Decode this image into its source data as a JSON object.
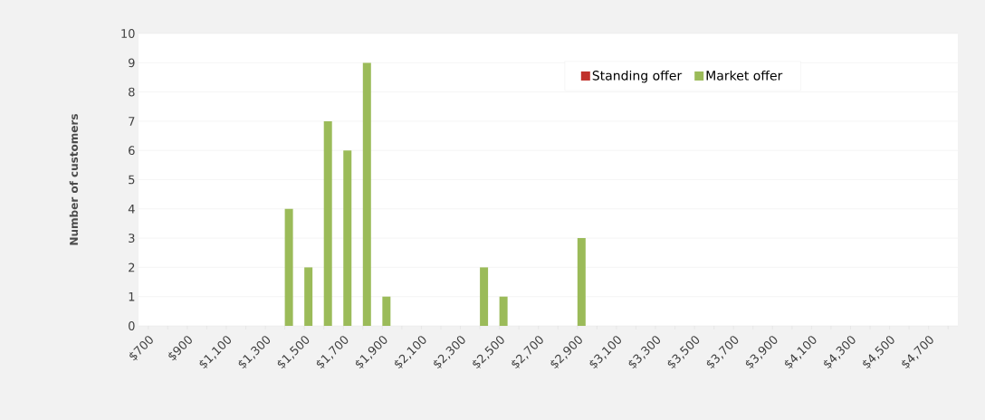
{
  "chart_data": {
    "type": "bar",
    "ylabel": "Number of customers",
    "categories": [
      "$700",
      null,
      "$900",
      null,
      "$1,100",
      null,
      "$1,300",
      null,
      "$1,500",
      null,
      "$1,700",
      null,
      "$1,900",
      null,
      "$2,100",
      null,
      "$2,300",
      null,
      "$2,500",
      null,
      "$2,700",
      null,
      "$2,900",
      null,
      "$3,100",
      null,
      "$3,300",
      null,
      "$3,500",
      null,
      "$3,700",
      null,
      "$3,900",
      null,
      "$4,100",
      null,
      "$4,300",
      null,
      "$4,500",
      null,
      "$4,700",
      null
    ],
    "series": [
      {
        "name": "Standing offer",
        "color": "#c0312b",
        "values": [
          0,
          0,
          0,
          0,
          0,
          0,
          0,
          0,
          0,
          0,
          0,
          0,
          0,
          0,
          0,
          0,
          0,
          0,
          0,
          0,
          0,
          0,
          0,
          0,
          0,
          0,
          0,
          0,
          0,
          0,
          0,
          0,
          0,
          0,
          0,
          0,
          0,
          0,
          0,
          0,
          0,
          0
        ]
      },
      {
        "name": "Market offer",
        "color": "#9bbb59",
        "values": [
          0,
          0,
          0,
          0,
          0,
          0,
          0,
          4,
          2,
          7,
          6,
          9,
          1,
          0,
          0,
          0,
          0,
          2,
          1,
          0,
          0,
          0,
          3,
          0,
          0,
          0,
          0,
          0,
          0,
          0,
          0,
          0,
          0,
          0,
          0,
          0,
          0,
          0,
          0,
          0,
          0,
          0
        ]
      }
    ],
    "ylim": [
      0,
      10
    ],
    "yticks": [
      0,
      1,
      2,
      3,
      4,
      5,
      6,
      7,
      8,
      9,
      10
    ],
    "grid": "y",
    "legend": "top"
  }
}
